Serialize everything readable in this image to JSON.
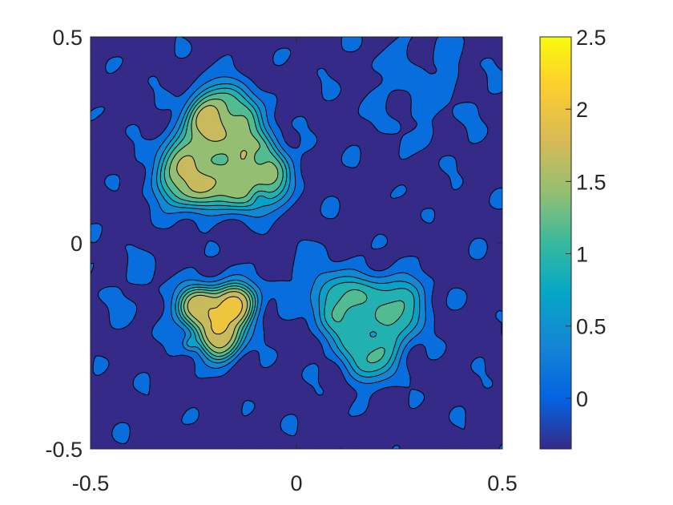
{
  "chart_data": {
    "type": "heatmap",
    "subtype": "filled-contour",
    "colormap": "parula",
    "xlim": [
      -0.5,
      0.5
    ],
    "ylim": [
      -0.5,
      0.5
    ],
    "x_ticks": [
      "-0.5",
      "0",
      "0.5"
    ],
    "y_ticks": [
      "0.5",
      "0",
      "-0.5"
    ],
    "colorbar": {
      "range": [
        -0.35,
        2.5
      ],
      "ticks": [
        "2.5",
        "2",
        "1.5",
        "1",
        "0.5",
        "0"
      ]
    },
    "contour_levels": [
      -0.02,
      0.25,
      0.55,
      0.8,
      1.05,
      1.3,
      1.55,
      1.85,
      2.15,
      2.45
    ],
    "features": [
      {
        "name": "triangular blob (top)",
        "center": [
          -0.18,
          0.21
        ],
        "radius": 0.14,
        "level": 1.55
      },
      {
        "name": "dots inside top blob",
        "points": [
          [
            -0.09,
            0.21
          ],
          [
            -0.09,
            0.11
          ]
        ],
        "level": 1.05
      },
      {
        "name": "small blob (lower left)",
        "center": [
          -0.19,
          -0.18
        ],
        "radius": 0.09,
        "level": 2.2
      },
      {
        "name": "peak",
        "center": [
          -0.26,
          -0.25
        ],
        "level": 2.5
      },
      {
        "name": "triangular blob (lower right)",
        "center": [
          0.18,
          -0.19
        ],
        "radius": 0.12,
        "level": 1.05
      }
    ],
    "colors": {
      "low": "#352a87",
      "mid_blue": "#0f5cdd",
      "teal": "#15b1b4",
      "green": "#a5be6a",
      "orange": "#fbb130",
      "yellow": "#f9fb0e"
    }
  }
}
